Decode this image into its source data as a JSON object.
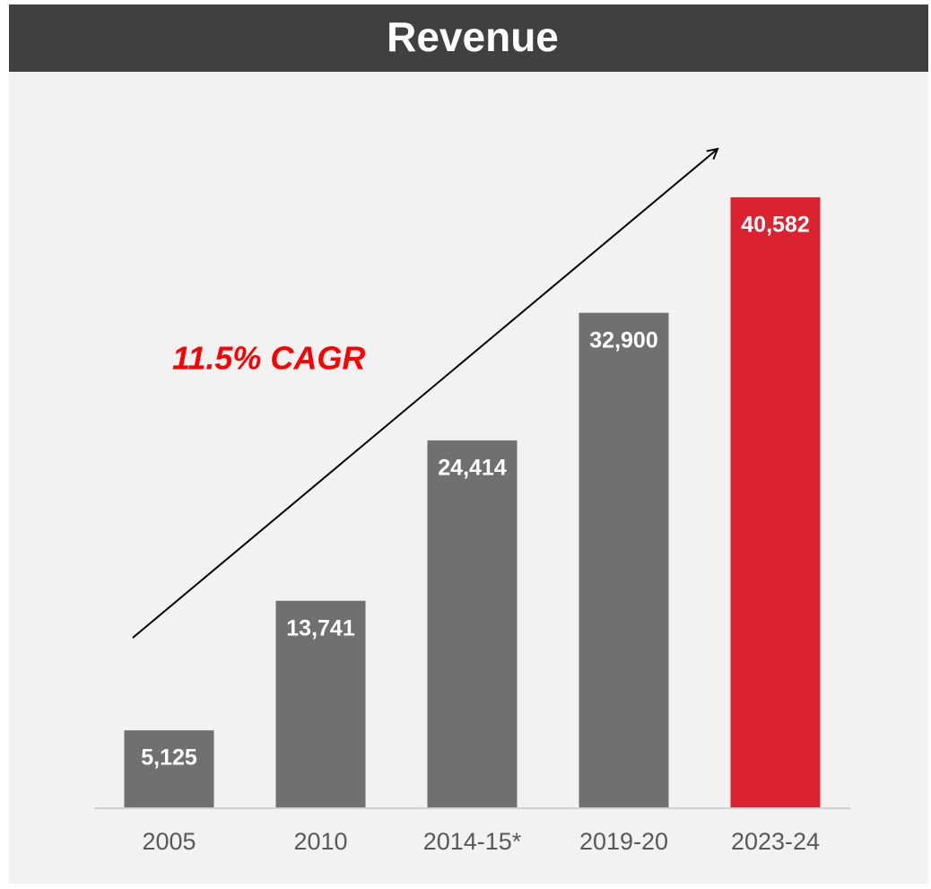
{
  "chart_data": {
    "type": "bar",
    "title": "Revenue",
    "categories": [
      "2005",
      "2010",
      "2014-15*",
      "2019-20",
      "2023-24"
    ],
    "values": [
      5125,
      13741,
      24414,
      32900,
      40582
    ],
    "value_labels": [
      "5,125",
      "13,741",
      "24,414",
      "32,900",
      "40,582"
    ],
    "colors": [
      "#707070",
      "#707070",
      "#707070",
      "#707070",
      "#dc2230"
    ],
    "annotation": "11.5% CAGR"
  }
}
